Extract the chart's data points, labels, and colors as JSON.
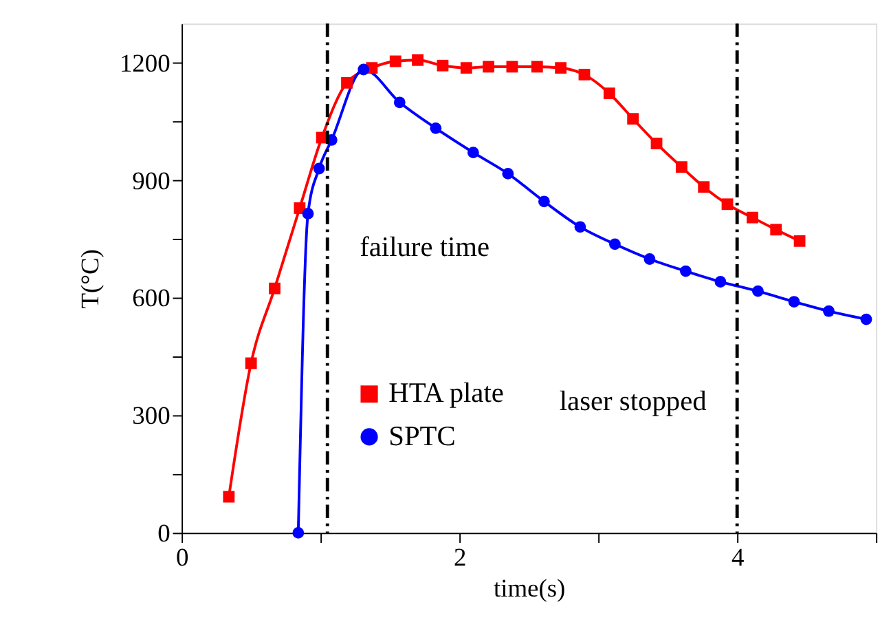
{
  "chart_data": {
    "type": "line",
    "xlabel": "time(s)",
    "ylabel": "T(°C)",
    "xlim": [
      0,
      5
    ],
    "xticks": [
      0,
      {
        "value": 1,
        "label": null
      },
      2,
      {
        "value": 3,
        "label": null
      },
      4,
      {
        "value": 5,
        "label": null
      }
    ],
    "ylim": [
      0,
      1300
    ],
    "yticks": [
      0,
      {
        "value": 150,
        "label": null
      },
      300,
      {
        "value": 450,
        "label": null
      },
      600,
      {
        "value": 750,
        "label": null
      },
      900,
      {
        "value": 1050,
        "label": null
      },
      1200
    ],
    "grid": false,
    "legend": "bottom",
    "line_style": "solid",
    "series": [
      {
        "name": "HTA plate",
        "color": "#ff0000",
        "marker": "square",
        "x": [
          0.34,
          0.5,
          0.67,
          0.85,
          1.01,
          1.19,
          1.37,
          1.54,
          1.7,
          1.88,
          2.05,
          2.21,
          2.38,
          2.56,
          2.73,
          2.9,
          3.08,
          3.25,
          3.42,
          3.6,
          3.76,
          3.93,
          4.11,
          4.28,
          4.45
        ],
        "values": [
          92,
          433,
          624,
          829,
          1009,
          1149,
          1187,
          1204,
          1207,
          1193,
          1187,
          1190,
          1190,
          1190,
          1187,
          1170,
          1122,
          1057,
          994,
          934,
          883,
          839,
          805,
          774,
          745
        ]
      },
      {
        "name": "SPTC",
        "color": "#0000ff",
        "marker": "circle",
        "x": [
          0.84,
          0.91,
          0.99,
          1.08,
          1.31,
          1.57,
          1.83,
          2.1,
          2.35,
          2.61,
          2.87,
          3.12,
          3.37,
          3.63,
          3.88,
          4.15,
          4.41,
          4.66,
          4.93
        ],
        "values": [
          0,
          815,
          930,
          1003,
          1183,
          1099,
          1033,
          971,
          917,
          846,
          781,
          737,
          699,
          668,
          641,
          617,
          590,
          566,
          545
        ]
      }
    ],
    "ref_lines": [
      {
        "axis": "x",
        "value": 1.05,
        "color": "#000000",
        "line_style": "dashdot"
      },
      {
        "axis": "x",
        "value": 4.0,
        "color": "#000000",
        "line_style": "dashdot"
      }
    ],
    "annotations": [
      "failure time",
      "laser stopped"
    ]
  }
}
